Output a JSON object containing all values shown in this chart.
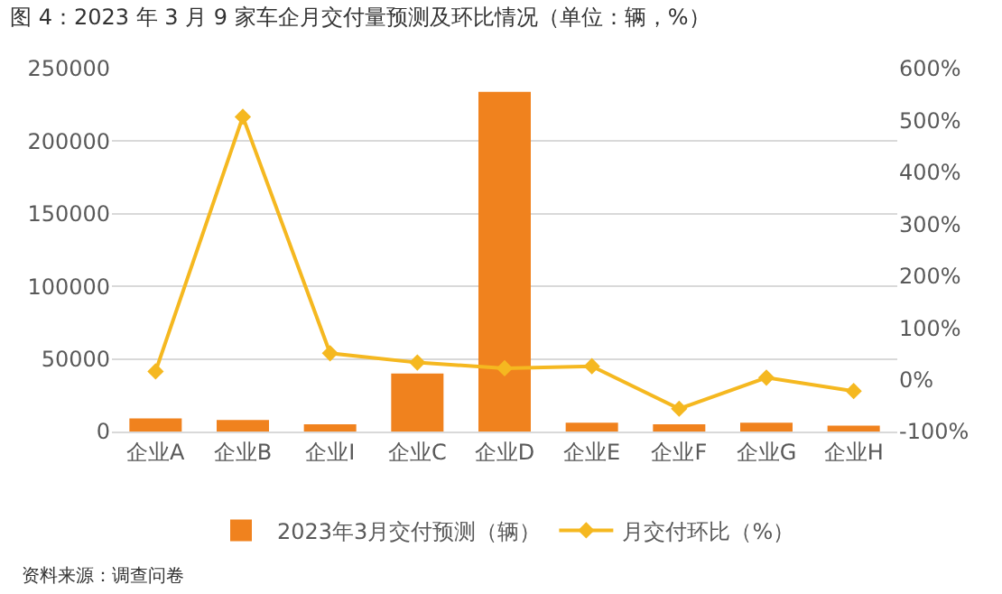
{
  "chart_data": {
    "type": "bar",
    "title": "图 4：2023 年 3 月 9 家车企月交付量预测及环比情况（单位：辆，%）",
    "categories": [
      "企业A",
      "企业B",
      "企业I",
      "企业C",
      "企业D",
      "企业E",
      "企业F",
      "企业G",
      "企业H"
    ],
    "series": [
      {
        "name": "2023年3月交付预测（辆）",
        "color": "#f0821e",
        "values": [
          9000,
          8000,
          5000,
          40000,
          234000,
          6000,
          5000,
          6000,
          4000
        ]
      },
      {
        "name": "月交付环比（%）",
        "type": "line",
        "axis": "y2",
        "color": "#f5b820",
        "marker": "diamond",
        "values": [
          16,
          507,
          51,
          33,
          22,
          26,
          -56,
          4,
          -22
        ]
      }
    ],
    "ylim": [
      0,
      250000
    ],
    "yticks": [
      0,
      50000,
      100000,
      150000,
      200000,
      250000
    ],
    "y2lim": [
      -100,
      600
    ],
    "y2ticks": [
      {
        "value": -100,
        "label": "-100%"
      },
      {
        "value": 0,
        "label": "0%"
      },
      {
        "value": 100,
        "label": "100%"
      },
      {
        "value": 200,
        "label": "200%"
      },
      {
        "value": 300,
        "label": "300%"
      },
      {
        "value": 400,
        "label": "400%"
      },
      {
        "value": 500,
        "label": "500%"
      },
      {
        "value": 600,
        "label": "600%"
      }
    ],
    "grid": "y",
    "legend": "bottom",
    "annotations": [
      "资料来源：调查问卷"
    ]
  }
}
